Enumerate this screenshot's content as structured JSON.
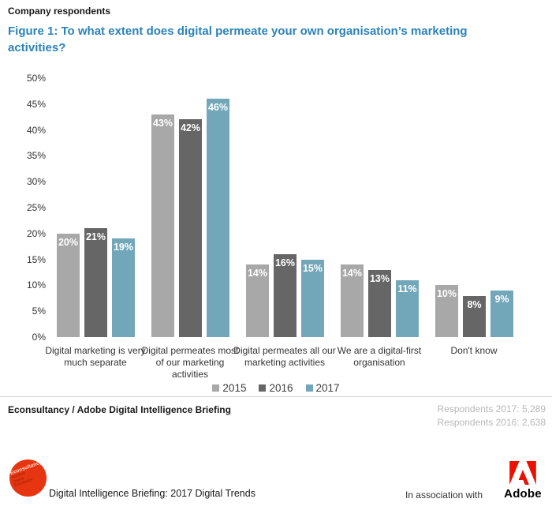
{
  "page": {
    "eyebrow": "Company respondents",
    "title": "Figure 1: To what extent does digital permeate your own organisation’s marketing activities?"
  },
  "chart_data": {
    "type": "bar",
    "title": "Figure 1: To what extent does digital permeate your own organisation’s marketing activities?",
    "categories": [
      "Digital marketing is very much separate",
      "Digital permeates most of our marketing activities",
      "Digital permeates all our marketing activities",
      "We are a digital-first organisation",
      "Don't know"
    ],
    "series": [
      {
        "name": "2015",
        "color": "#a8a8a8",
        "values": [
          20,
          43,
          14,
          14,
          10
        ]
      },
      {
        "name": "2016",
        "color": "#666666",
        "values": [
          21,
          42,
          16,
          13,
          8
        ]
      },
      {
        "name": "2017",
        "color": "#72a7ba",
        "values": [
          19,
          46,
          15,
          11,
          9
        ]
      }
    ],
    "ylim": [
      0,
      50
    ],
    "ytick_step": 5,
    "ytick_format": "percent",
    "value_label_format": "percent",
    "grid": false,
    "legend_position": "bottom-center"
  },
  "attribution": {
    "source": "Econsultancy / Adobe Digital Intelligence Briefing",
    "respondents": [
      "Respondents 2017: 5,289",
      "Respondents 2016: 2,638"
    ]
  },
  "footer": {
    "econsultancy": {
      "name": "Econsultancy",
      "tagline": [
        "Achieve",
        "Digital",
        "Excellence"
      ]
    },
    "report_title": "Digital Intelligence Briefing: 2017 Digital Trends",
    "association_text": "In association with",
    "adobe_label": "Adobe"
  },
  "colors": {
    "title_blue": "#2b82ba",
    "series_2015": "#a8a8a8",
    "series_2016": "#666666",
    "series_2017": "#72a7ba",
    "adobe_red": "#eb1000",
    "econsultancy_red": "#e63511",
    "divider_gray": "#cfcfcf",
    "respondents_gray": "#b8b8b8"
  }
}
